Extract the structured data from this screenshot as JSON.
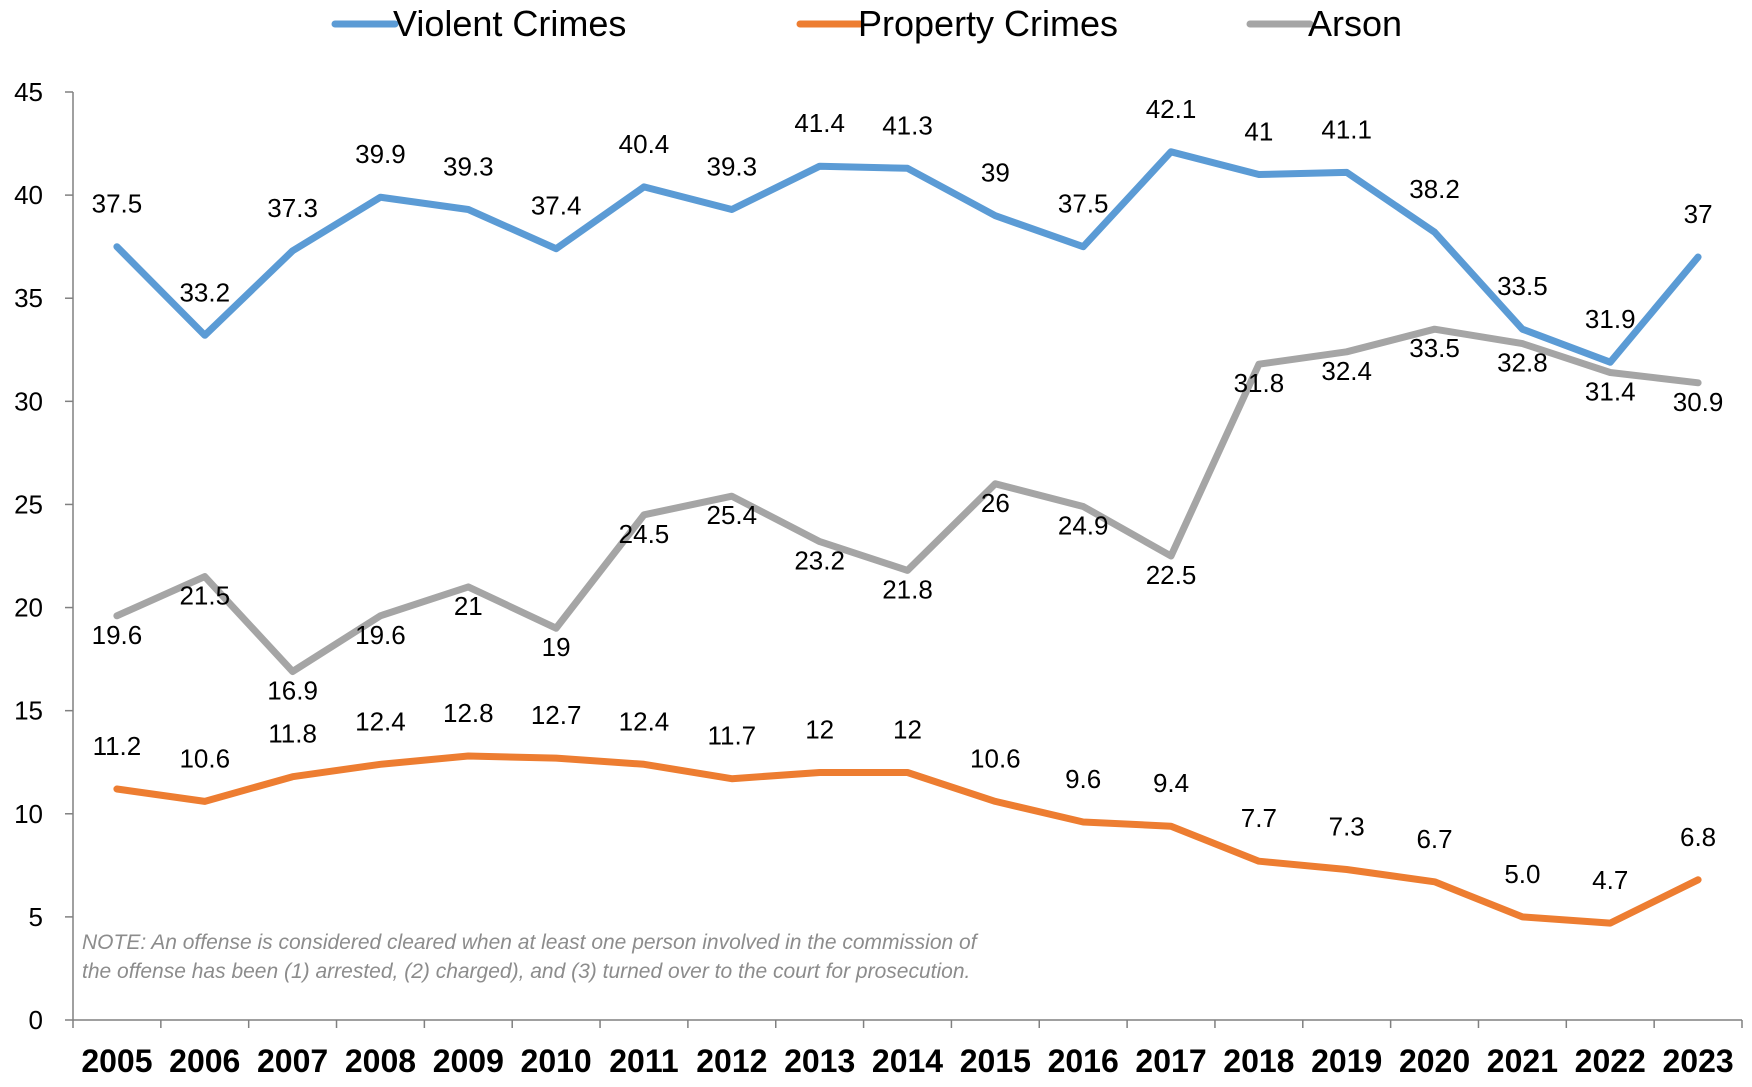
{
  "chart_data": {
    "type": "line",
    "title": "",
    "xlabel": "",
    "ylabel": "",
    "categories": [
      "2005",
      "2006",
      "2007",
      "2008",
      "2009",
      "2010",
      "2011",
      "2012",
      "2013",
      "2014",
      "2015",
      "2016",
      "2017",
      "2018",
      "2019",
      "2020",
      "2021",
      "2022",
      "2023"
    ],
    "ylim": [
      0,
      45
    ],
    "yticks": [
      0,
      5,
      10,
      15,
      20,
      25,
      30,
      35,
      40,
      45
    ],
    "grid": false,
    "legend_position": "top",
    "series": [
      {
        "name": "Violent Crimes",
        "color": "#5B9BD5",
        "values": [
          37.5,
          33.2,
          37.3,
          39.9,
          39.3,
          37.4,
          40.4,
          39.3,
          41.4,
          41.3,
          39,
          37.5,
          42.1,
          41,
          41.1,
          38.2,
          33.5,
          31.9,
          37
        ],
        "labels": [
          "37.5",
          "33.2",
          "37.3",
          "39.9",
          "39.3",
          "37.4",
          "40.4",
          "39.3",
          "41.4",
          "41.3",
          "39",
          "37.5",
          "42.1",
          "41",
          "41.1",
          "38.2",
          "33.5",
          "31.9",
          "37"
        ]
      },
      {
        "name": "Property Crimes",
        "color": "#ED7D31",
        "values": [
          11.2,
          10.6,
          11.8,
          12.4,
          12.8,
          12.7,
          12.4,
          11.7,
          12,
          12,
          10.6,
          9.6,
          9.4,
          7.7,
          7.3,
          6.7,
          5.0,
          4.7,
          6.8
        ],
        "labels": [
          "11.2",
          "10.6",
          "11.8",
          "12.4",
          "12.8",
          "12.7",
          "12.4",
          "11.7",
          "12",
          "12",
          "10.6",
          "9.6",
          "9.4",
          "7.7",
          "7.3",
          "6.7",
          "5.0",
          "4.7",
          "6.8"
        ]
      },
      {
        "name": "Arson",
        "color": "#A5A5A5",
        "values": [
          19.6,
          21.5,
          16.9,
          19.6,
          21,
          19,
          24.5,
          25.4,
          23.2,
          21.8,
          26,
          24.9,
          22.5,
          31.8,
          32.4,
          33.5,
          32.8,
          31.4,
          30.9
        ],
        "labels": [
          "19.6",
          "21.5",
          "16.9",
          "19.6",
          "21",
          "19",
          "24.5",
          "25.4",
          "23.2",
          "21.8",
          "26",
          "24.9",
          "22.5",
          "31.8",
          "32.4",
          "33.5",
          "32.8",
          "31.4",
          "30.9"
        ]
      }
    ],
    "annotation": "NOTE: An offense is considered cleared when at least one person involved in the commission of the offense has been (1) arrested, (2) charged), and (3) turned over to the court for prosecution."
  }
}
